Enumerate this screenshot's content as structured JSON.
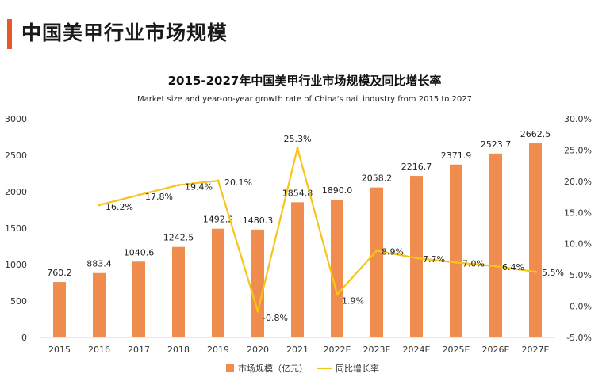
{
  "page": {
    "heading": "中国美甲行业市场规模"
  },
  "colors": {
    "accent": "#e8592a",
    "bar": "#ef8c4e",
    "line": "#f5c518"
  },
  "chart_data": {
    "type": "bar",
    "title": "2015-2027年中国美甲行业市场规模及同比增长率",
    "subtitle": "Market size and year-on-year growth rate of China's nail industry from 2015 to 2027",
    "categories": [
      "2015",
      "2016",
      "2017",
      "2018",
      "2019",
      "2020",
      "2021",
      "2022E",
      "2023E",
      "2024E",
      "2025E",
      "2026E",
      "2027E"
    ],
    "series": [
      {
        "name": "市场规模（亿元）",
        "type": "bar",
        "axis": "left",
        "values": [
          760.2,
          883.4,
          1040.6,
          1242.5,
          1492.2,
          1480.3,
          1854.8,
          1890.0,
          2058.2,
          2216.7,
          2371.9,
          2523.7,
          2662.5
        ],
        "labels": [
          "760.2",
          "883.4",
          "1040.6",
          "1242.5",
          "1492.2",
          "1480.3",
          "1854.8",
          "1890.0",
          "2058.2",
          "2216.7",
          "2371.9",
          "2523.7",
          "2662.5"
        ]
      },
      {
        "name": "同比增长率",
        "type": "line",
        "axis": "right",
        "values": [
          null,
          16.2,
          17.8,
          19.4,
          20.1,
          -0.8,
          25.3,
          1.9,
          8.9,
          7.7,
          7.0,
          6.4,
          5.5
        ],
        "labels": [
          null,
          "16.2%",
          "17.8%",
          "19.4%",
          "20.1%",
          "-0.8%",
          "25.3%",
          "1.9%",
          "8.9%",
          "7.7%",
          "7.0%",
          "6.4%",
          "5.5%"
        ]
      }
    ],
    "ylim_left": [
      0,
      3000
    ],
    "yticks_left": [
      "0",
      "500",
      "1000",
      "1500",
      "2000",
      "2500",
      "3000"
    ],
    "ylim_right": [
      -5,
      30
    ],
    "yticks_right": [
      "-5.0%",
      "0.0%",
      "5.0%",
      "10.0%",
      "15.0%",
      "20.0%",
      "25.0%",
      "30.0%"
    ],
    "grid": false,
    "legend": "bottom"
  }
}
